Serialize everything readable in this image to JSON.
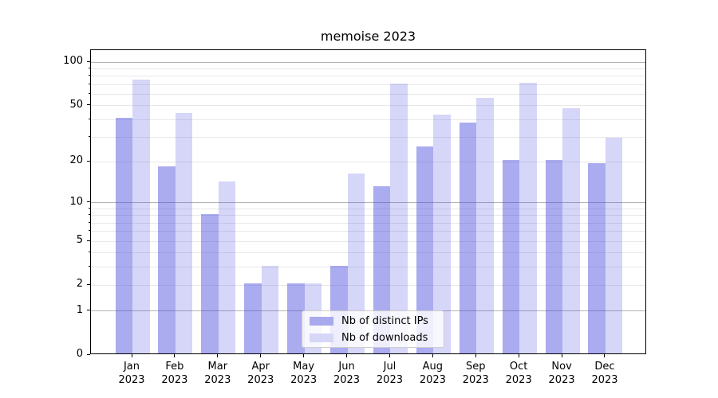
{
  "title": "memoise 2023",
  "legend": {
    "items": [
      {
        "label": "Nb of distinct IPs",
        "color": "#a9a9ee"
      },
      {
        "label": "Nb of downloads",
        "color": "#d6d6f7"
      }
    ]
  },
  "axes": {
    "x": {
      "months": [
        "Jan",
        "Feb",
        "Mar",
        "Apr",
        "May",
        "Jun",
        "Jul",
        "Aug",
        "Sep",
        "Oct",
        "Nov",
        "Dec"
      ],
      "year": "2023"
    },
    "y": {
      "tick_values": [
        0,
        1,
        2,
        5,
        10,
        20,
        50,
        100
      ],
      "minor_tick_values": [
        3,
        4,
        6,
        7,
        8,
        9,
        30,
        40,
        60,
        70,
        80,
        90
      ],
      "major_grid_values": [
        1,
        10,
        100
      ]
    }
  },
  "chart_data": {
    "type": "bar",
    "title": "memoise 2023",
    "categories": [
      "Jan 2023",
      "Feb 2023",
      "Mar 2023",
      "Apr 2023",
      "May 2023",
      "Jun 2023",
      "Jul 2023",
      "Aug 2023",
      "Sep 2023",
      "Oct 2023",
      "Nov 2023",
      "Dec 2023"
    ],
    "series": [
      {
        "name": "Nb of distinct IPs",
        "color": "#a9a9ee",
        "values": [
          40,
          18,
          8,
          2,
          2,
          3,
          13,
          25,
          37,
          20,
          20,
          19
        ]
      },
      {
        "name": "Nb of downloads",
        "color": "#d6d6f7",
        "values": [
          74,
          43,
          14,
          3,
          2,
          16,
          69,
          42,
          55,
          70,
          47,
          29
        ]
      }
    ],
    "yscale": "log10(1+v)",
    "ylim": [
      0,
      123
    ],
    "yticks": [
      0,
      1,
      2,
      5,
      10,
      20,
      50,
      100
    ],
    "grid": "horizontal",
    "legend_position": "lower center"
  },
  "colors": {
    "bar_dark_rgba": "rgba(68,68,221,0.45)",
    "bar_light_rgba": "rgba(68,68,221,0.22)",
    "grid_major": "#b3b3b3",
    "grid_minor": "#e8e8e8",
    "axis": "#000000"
  }
}
